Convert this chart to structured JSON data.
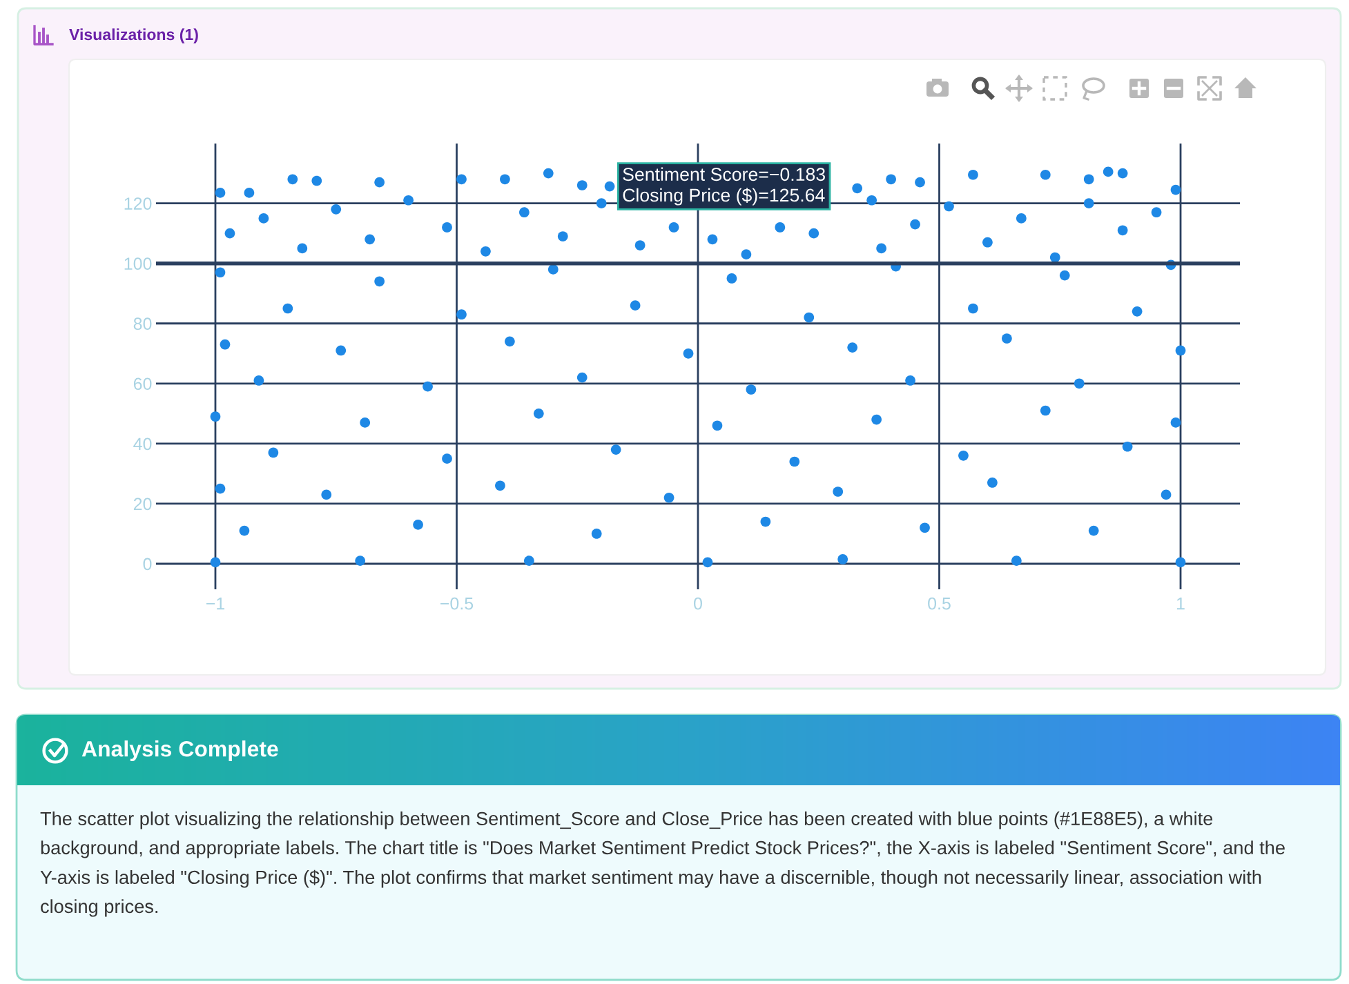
{
  "chart_data": {
    "type": "scatter",
    "title": "Visualizations (1)",
    "x": [
      -0.99,
      -0.93,
      -0.84,
      -0.79,
      -0.66,
      -0.49,
      -0.4,
      -0.31,
      -0.183,
      -0.24,
      0.33,
      0.4,
      0.46,
      0.57,
      0.72,
      0.81,
      0.85,
      0.88,
      0.99,
      -0.97,
      -0.9,
      -0.82,
      -0.75,
      -0.68,
      -0.6,
      -0.52,
      -0.44,
      -0.36,
      -0.28,
      -0.2,
      -0.12,
      -0.05,
      0.03,
      0.1,
      0.17,
      0.24,
      0.36,
      0.38,
      0.45,
      0.52,
      0.6,
      0.67,
      0.74,
      0.81,
      0.88,
      0.95,
      -1,
      -0.7,
      -0.35,
      0.02,
      0.3,
      0.66,
      1,
      -0.94,
      -0.58,
      -0.21,
      0.14,
      0.47,
      0.82,
      -0.99,
      -0.77,
      -0.41,
      -0.06,
      0.29,
      0.61,
      0.97,
      -0.88,
      -0.52,
      -0.17,
      0.2,
      0.55,
      0.89,
      -1,
      -0.69,
      -0.33,
      0.04,
      0.37,
      0.72,
      0.99,
      -0.91,
      -0.56,
      -0.24,
      0.11,
      0.44,
      0.79,
      -0.98,
      -0.74,
      -0.39,
      -0.02,
      0.32,
      0.64,
      1,
      -0.85,
      -0.49,
      -0.13,
      0.23,
      0.57,
      0.91,
      -0.99,
      -0.66,
      -0.3,
      0.07,
      0.41,
      0.76,
      0.98
    ],
    "values": [
      123.5,
      123.5,
      128,
      127.5,
      127,
      128,
      128,
      130,
      125.64,
      126,
      125,
      128,
      127,
      129.5,
      129.5,
      128,
      130.5,
      130,
      124.5,
      110,
      115,
      105,
      118,
      108,
      121,
      112,
      104,
      117,
      109,
      120,
      106,
      112,
      108,
      103,
      112,
      110,
      121,
      105,
      113,
      119,
      107,
      115,
      102,
      120,
      111,
      117,
      0.5,
      1,
      1,
      0.5,
      1.5,
      1,
      0.5,
      11,
      13,
      10,
      14,
      12,
      11,
      25,
      23,
      26,
      22,
      24,
      27,
      23,
      37,
      35,
      38,
      34,
      36,
      39,
      49,
      47,
      50,
      46,
      48,
      51,
      47,
      61,
      59,
      62,
      58,
      61,
      60,
      73,
      71,
      74,
      70,
      72,
      75,
      71,
      85,
      83,
      86,
      82,
      85,
      84,
      97,
      94,
      98,
      95,
      99,
      96,
      99.5
    ],
    "color": "#1e88e5",
    "marker": "circle",
    "xlim": [
      -1.123,
      1.123
    ],
    "ylim": [
      -8.5,
      139.9
    ],
    "xticks": [
      {
        "value": -1,
        "label": "−1"
      },
      {
        "value": -0.5,
        "label": "−0.5"
      },
      0,
      0.5,
      1
    ],
    "yticks": [
      0,
      20,
      40,
      60,
      80,
      100,
      120
    ],
    "grid": true,
    "ref_lines": [
      {
        "axis": "y",
        "value": 100,
        "color": "#2a3f5f"
      }
    ],
    "annotations": [
      {
        "text": "Sentiment Score=−0.183\nClosing Price ($)=125.64",
        "x": -0.183,
        "y": 125.64
      },
      "Analysis Complete",
      "The scatter plot visualizing the relationship between Sentiment_Score and Close_Price has been created with blue points (#1E88E5), a white background, and appropriate labels. The chart title is \"Does Market Sentiment Predict Stock Prices?\", the X-axis is labeled \"Sentiment Score\", and the Y-axis is labeled \"Closing Price ($)\". The plot confirms that market sentiment may have a discernible, though not necessarily linear, association with closing prices."
    ]
  }
}
